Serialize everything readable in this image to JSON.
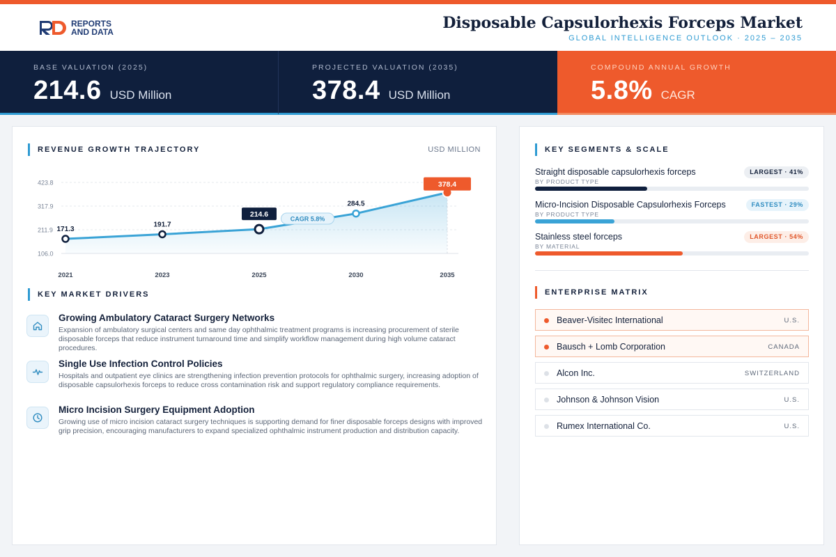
{
  "header": {
    "logo_line1": "REPORTS",
    "logo_line2": "AND DATA",
    "title": "Disposable Capsulorhexis Forceps Market",
    "subtitle": "GLOBAL INTELLIGENCE OUTLOOK  ·  2025 – 2035"
  },
  "stats": [
    {
      "label": "BASE VALUATION (2025)",
      "value": "214.6",
      "unit": "USD Million"
    },
    {
      "label": "PROJECTED VALUATION (2035)",
      "value": "378.4",
      "unit": "USD Million"
    },
    {
      "label": "COMPOUND ANNUAL GROWTH",
      "value": "5.8%",
      "unit": "CAGR"
    }
  ],
  "trajectory": {
    "title": "REVENUE GROWTH TRAJECTORY",
    "unit": "USD MILLION"
  },
  "chart_data": {
    "type": "area",
    "title": "REVENUE GROWTH TRAJECTORY",
    "ylabel": "USD MILLION",
    "x": [
      "2021",
      "2023",
      "2025",
      "2030",
      "2035"
    ],
    "values": [
      171.3,
      191.7,
      214.6,
      284.5,
      378.4
    ],
    "labels": [
      "171.3",
      "191.7",
      "214.6",
      "284.5",
      "378.4"
    ],
    "yticks": [
      106.0,
      211.9,
      317.9,
      423.8
    ],
    "ytick_labels": [
      "106.0",
      "211.9",
      "317.9",
      "423.8"
    ],
    "ylim": [
      106.0,
      423.8
    ],
    "grid": true,
    "annotation": "CAGR 5.8%",
    "colors": {
      "line": "#3aa3d6",
      "highlight": "#0f1f3d",
      "end": "#ee5a2c"
    }
  },
  "drivers": {
    "title": "KEY MARKET DRIVERS",
    "items": [
      {
        "icon": "home-icon",
        "title": "Growing Ambulatory Cataract Surgery Networks",
        "desc": "Expansion of ambulatory surgical centers and same day ophthalmic treatment programs is increasing procurement of sterile disposable forceps that reduce instrument turnaround time and simplify workflow management during high volume cataract procedures."
      },
      {
        "icon": "pulse-icon",
        "title": "Single Use Infection Control Policies",
        "desc": "Hospitals and outpatient eye clinics are strengthening infection prevention protocols for ophthalmic surgery, increasing adoption of disposable capsulorhexis forceps to reduce cross contamination risk and support regulatory compliance requirements."
      },
      {
        "icon": "clock-icon",
        "title": "Micro Incision Surgery Equipment Adoption",
        "desc": "Growing use of micro incision cataract surgery techniques is supporting demand for finer disposable forceps designs with improved grip precision, encouraging manufacturers to expand specialized ophthalmic instrument production and distribution capacity."
      }
    ]
  },
  "segments": {
    "title": "KEY SEGMENTS & SCALE",
    "items": [
      {
        "name": "Straight disposable capsulorhexis forceps",
        "category": "BY PRODUCT TYPE",
        "badge": "LARGEST · 41%",
        "share": 41,
        "bar_color": "#0f1f3d",
        "badge_bg": "#eceff3",
        "badge_fg": "#13203a"
      },
      {
        "name": "Micro-Incision Disposable Capsulorhexis Forceps",
        "category": "BY PRODUCT TYPE",
        "badge": "FASTEST · 29%",
        "share": 29,
        "bar_color": "#3aa3d6",
        "badge_bg": "#e6f3fb",
        "badge_fg": "#2f8cc0"
      },
      {
        "name": "Stainless steel forceps",
        "category": "BY MATERIAL",
        "badge": "LARGEST · 54%",
        "share": 54,
        "bar_color": "#ee5a2c",
        "badge_bg": "#fdeee7",
        "badge_fg": "#e0562a"
      }
    ]
  },
  "matrix": {
    "title": "ENTERPRISE MATRIX",
    "items": [
      {
        "name": "Beaver-Visitec International",
        "country": "U.S.",
        "highlight": true
      },
      {
        "name": "Bausch + Lomb Corporation",
        "country": "CANADA",
        "highlight": true
      },
      {
        "name": "Alcon Inc.",
        "country": "SWITZERLAND",
        "highlight": false
      },
      {
        "name": "Johnson & Johnson Vision",
        "country": "U.S.",
        "highlight": false
      },
      {
        "name": "Rumex International Co.",
        "country": "U.S.",
        "highlight": false
      }
    ]
  }
}
